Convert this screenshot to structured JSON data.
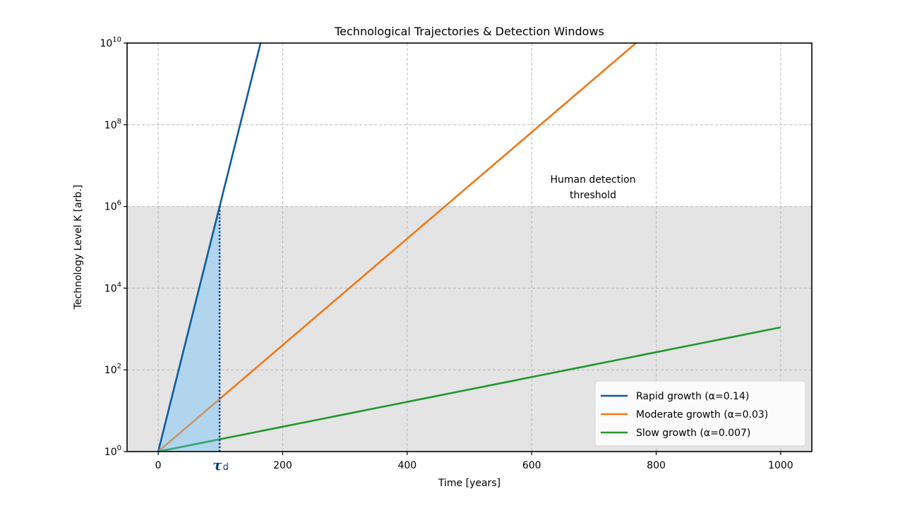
{
  "chart_data": {
    "type": "line",
    "title": "Technological Trajectories & Detection Windows",
    "xlabel": "Time [years]",
    "ylabel": "Technology Level K [arb.]",
    "xlim": [
      -50,
      1050
    ],
    "ylim": [
      1,
      10000000000
    ],
    "yscale": "log",
    "grid": true,
    "legend_position": "lower right",
    "x_ticks": [
      0,
      200,
      400,
      600,
      800,
      1000
    ],
    "x_tick_labels": [
      "0",
      "200",
      "400",
      "600",
      "800",
      "1000"
    ],
    "y_ticks_exp": [
      0,
      2,
      4,
      6,
      8,
      10
    ],
    "y_tick_labels": [
      "10^0",
      "10^2",
      "10^4",
      "10^6",
      "10^8",
      "10^10"
    ],
    "series": [
      {
        "name": "Rapid growth (α=0.14)",
        "alpha": 0.14,
        "color": "#0d5c9e",
        "x": [
          0,
          100,
          164.5
        ],
        "values": [
          1,
          1202604,
          10000000000
        ]
      },
      {
        "name": "Moderate growth (α=0.03)",
        "alpha": 0.03,
        "color": "#f07818",
        "x": [
          0,
          100,
          400,
          600,
          767.5
        ],
        "values": [
          1,
          20.09,
          162755,
          65659969,
          10000000000
        ]
      },
      {
        "name": "Slow growth (α=0.007)",
        "alpha": 0.007,
        "color": "#22962c",
        "x": [
          0,
          100,
          400,
          600,
          1000
        ],
        "values": [
          1,
          2.01,
          16.44,
          66.69,
          1096.6
        ]
      }
    ],
    "detection_threshold": {
      "value": 1000000,
      "label": "Human detection threshold",
      "shade_color": "#e4e4e4"
    },
    "tau_d": {
      "value": 98.7,
      "label": "τ",
      "subscript": "d",
      "color": "#0d3d8a"
    },
    "detection_window_fill": {
      "x_range": [
        0,
        98.7
      ],
      "color": "#a9d2f0"
    }
  },
  "legend": {
    "items": [
      {
        "label": "Rapid growth (α=0.14)",
        "color": "#0d5c9e"
      },
      {
        "label": "Moderate growth (α=0.03)",
        "color": "#f07818"
      },
      {
        "label": "Slow growth (α=0.007)",
        "color": "#22962c"
      }
    ]
  },
  "annotation": {
    "line1": "Human detection",
    "line2": "threshold"
  }
}
